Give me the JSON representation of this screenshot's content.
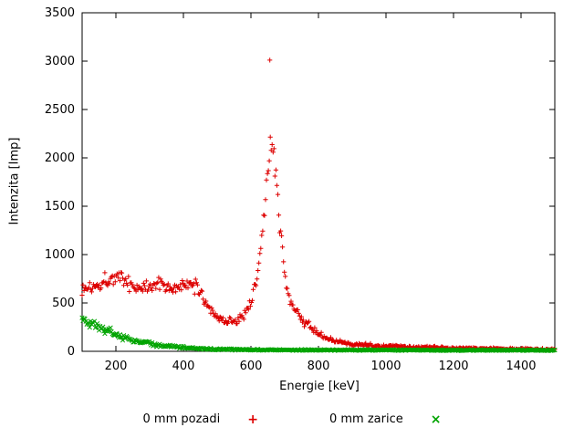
{
  "chart_data": {
    "type": "scatter",
    "title": "",
    "xlabel": "Energie [keV]",
    "ylabel": "Intenzita [Imp]",
    "xlim": [
      100,
      1500
    ],
    "ylim": [
      0,
      3500
    ],
    "xticks": [
      200,
      400,
      600,
      800,
      1000,
      1200,
      1400
    ],
    "yticks": [
      0,
      500,
      1000,
      1500,
      2000,
      2500,
      3000,
      3500
    ],
    "grid": false,
    "legend_position": "bottom-center",
    "series": [
      {
        "name": "0 mm pozadi",
        "marker": "plus",
        "color": "#dd0000",
        "sample_step_keV": 2.8,
        "profile": [
          [
            100,
            640,
            95
          ],
          [
            120,
            660,
            95
          ],
          [
            150,
            700,
            95
          ],
          [
            180,
            760,
            95
          ],
          [
            200,
            770,
            100
          ],
          [
            220,
            750,
            95
          ],
          [
            240,
            700,
            90
          ],
          [
            260,
            660,
            85
          ],
          [
            280,
            650,
            85
          ],
          [
            300,
            680,
            90
          ],
          [
            320,
            705,
            95
          ],
          [
            340,
            690,
            90
          ],
          [
            360,
            660,
            85
          ],
          [
            380,
            650,
            85
          ],
          [
            400,
            665,
            90
          ],
          [
            420,
            685,
            95
          ],
          [
            440,
            660,
            90
          ],
          [
            460,
            560,
            80
          ],
          [
            480,
            430,
            65
          ],
          [
            500,
            350,
            55
          ],
          [
            520,
            320,
            50
          ],
          [
            540,
            310,
            50
          ],
          [
            560,
            320,
            50
          ],
          [
            580,
            380,
            60
          ],
          [
            600,
            520,
            85
          ],
          [
            620,
            820,
            130
          ],
          [
            635,
            1250,
            170
          ],
          [
            645,
            1650,
            190
          ],
          [
            655,
            2050,
            200
          ],
          [
            662,
            2150,
            180
          ],
          [
            670,
            1950,
            200
          ],
          [
            680,
            1500,
            180
          ],
          [
            690,
            1100,
            150
          ],
          [
            700,
            820,
            120
          ],
          [
            715,
            560,
            95
          ],
          [
            730,
            430,
            75
          ],
          [
            750,
            330,
            60
          ],
          [
            775,
            260,
            50
          ],
          [
            800,
            180,
            42
          ],
          [
            830,
            122,
            35
          ],
          [
            860,
            96,
            30
          ],
          [
            900,
            76,
            26
          ],
          [
            950,
            62,
            22
          ],
          [
            1000,
            52,
            20
          ],
          [
            1100,
            41,
            18
          ],
          [
            1200,
            33,
            16
          ],
          [
            1300,
            27,
            14
          ],
          [
            1400,
            23,
            13
          ],
          [
            1500,
            22,
            12
          ]
        ],
        "outliers": [
          [
            656,
            3010
          ]
        ]
      },
      {
        "name": "0 mm zarice",
        "marker": "cross",
        "color": "#00a400",
        "sample_step_keV": 2.8,
        "profile": [
          [
            100,
            330,
            70
          ],
          [
            120,
            300,
            65
          ],
          [
            140,
            270,
            60
          ],
          [
            160,
            240,
            55
          ],
          [
            180,
            205,
            50
          ],
          [
            200,
            175,
            45
          ],
          [
            220,
            150,
            40
          ],
          [
            240,
            128,
            35
          ],
          [
            260,
            108,
            32
          ],
          [
            280,
            92,
            28
          ],
          [
            300,
            78,
            25
          ],
          [
            330,
            62,
            22
          ],
          [
            360,
            50,
            18
          ],
          [
            400,
            38,
            15
          ],
          [
            450,
            28,
            12
          ],
          [
            500,
            22,
            10
          ],
          [
            550,
            19,
            9
          ],
          [
            600,
            17,
            8
          ],
          [
            700,
            15,
            8
          ],
          [
            800,
            14,
            7
          ],
          [
            1000,
            13,
            7
          ],
          [
            1200,
            12,
            7
          ],
          [
            1500,
            12,
            7
          ]
        ],
        "outliers": []
      }
    ]
  }
}
